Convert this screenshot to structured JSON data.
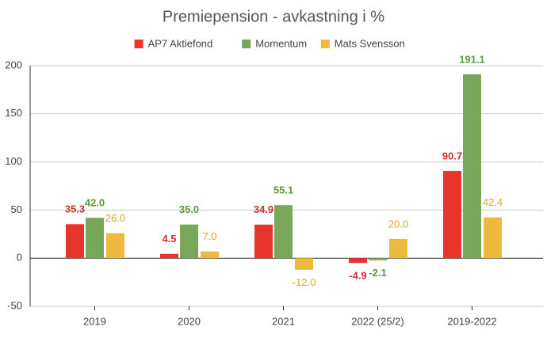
{
  "chart_data": {
    "type": "bar",
    "title": "Premiepension - avkastning i %",
    "categories": [
      "2019",
      "2020",
      "2021",
      "2022 (25/2)",
      "2019-2022"
    ],
    "series": [
      {
        "name": "AP7 Aktiefond",
        "color": "#e8352b",
        "values": [
          35.3,
          4.5,
          34.9,
          -4.9,
          90.7
        ],
        "value_labels": [
          "35.3",
          "4.5",
          "34.9",
          "-4.9",
          "90.7"
        ]
      },
      {
        "name": "Momentum",
        "color": "#78a75a",
        "values": [
          42.0,
          35.0,
          55.1,
          -2.1,
          191.1
        ],
        "value_labels": [
          "42.0",
          "35.0",
          "55.1",
          "-2.1",
          "191.1"
        ]
      },
      {
        "name": "Mats Svensson",
        "color": "#eeb93c",
        "values": [
          26.0,
          7.0,
          -12.0,
          20.0,
          42.4
        ],
        "value_labels": [
          "26.0",
          "7.0",
          "-12.0",
          "20.0",
          "42.4"
        ]
      }
    ],
    "ylim": [
      -50,
      200
    ],
    "yticks": [
      -50,
      0,
      50,
      100,
      150,
      200
    ],
    "grid": true
  }
}
